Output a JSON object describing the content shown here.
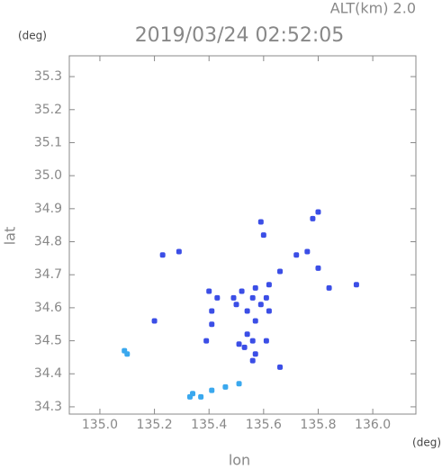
{
  "chart_data": {
    "type": "scatter",
    "title": "2019/03/24 02:52:05",
    "annotation": "ALT(km) 2.0",
    "y_unit": "(deg)",
    "x_unit": "(deg)",
    "x_label": "lon",
    "y_label": "lat",
    "xlim": [
      134.888,
      136.158
    ],
    "ylim": [
      34.278,
      35.363
    ],
    "xticks": [
      {
        "value": 135.0,
        "label": "135.0"
      },
      135.2,
      135.4,
      135.6,
      135.8,
      {
        "value": 136.0,
        "label": "136.0"
      }
    ],
    "yticks": [
      34.3,
      34.4,
      34.5,
      34.6,
      34.7,
      34.8,
      34.9,
      {
        "value": 35.0,
        "label": "35.0"
      },
      35.1,
      35.2,
      35.3
    ],
    "series": [
      {
        "color": "#3b4ee6",
        "x": [
          135.59,
          135.6,
          135.78,
          135.8,
          135.23,
          135.29,
          135.2,
          135.52,
          135.49,
          135.57,
          135.62,
          135.4,
          135.43,
          135.41,
          135.41,
          135.39,
          135.54,
          135.57,
          135.59,
          135.62,
          135.54,
          135.56,
          135.61,
          135.53,
          135.57,
          135.56,
          135.51,
          135.66,
          135.72,
          135.8,
          135.84,
          135.94,
          135.76,
          135.61,
          135.56,
          135.5,
          135.66
        ],
        "y": [
          34.86,
          34.82,
          34.87,
          34.89,
          34.76,
          34.77,
          34.56,
          34.65,
          34.63,
          34.66,
          34.67,
          34.65,
          34.63,
          34.59,
          34.55,
          34.5,
          34.59,
          34.56,
          34.61,
          34.59,
          34.52,
          34.5,
          34.5,
          34.48,
          34.46,
          34.44,
          34.49,
          34.42,
          34.76,
          34.72,
          34.66,
          34.67,
          34.77,
          34.63,
          34.63,
          34.61,
          34.71
        ]
      },
      {
        "color": "#3aa8ee",
        "x": [
          135.1,
          135.09,
          135.34,
          135.37,
          135.41,
          135.46,
          135.51,
          135.33
        ],
        "y": [
          34.46,
          34.47,
          34.34,
          34.33,
          34.35,
          34.36,
          34.37,
          34.33
        ]
      }
    ]
  }
}
